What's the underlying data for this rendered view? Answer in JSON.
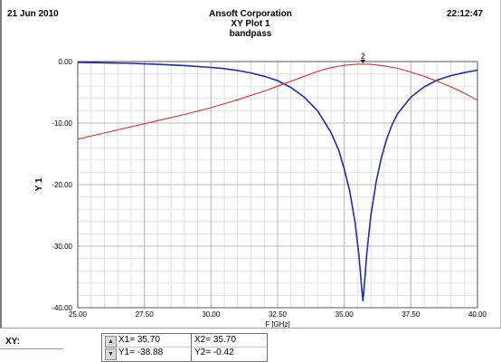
{
  "header": {
    "date": "21 Jun 2010",
    "company": "Ansoft Corporation",
    "plot_title": "XY Plot 1",
    "design_name": "bandpass",
    "time": "22:12:47"
  },
  "status": {
    "xy_label": "XY:",
    "marker_up_icon": "arrow-up-icon",
    "marker_down_icon": "arrow-down-icon",
    "x1": "X1= 35.70",
    "y1": "Y1= -38.88",
    "x2": "X2= 35.70",
    "y2": "Y2= -0.42"
  },
  "chart_data": {
    "type": "line",
    "xlabel": "F [GHz]",
    "ylabel": "Y 1",
    "xlim": [
      25.0,
      40.0
    ],
    "ylim": [
      -40.0,
      0.0
    ],
    "x_ticks": [
      "25.00",
      "27.50",
      "30.00",
      "32.50",
      "35.00",
      "37.50",
      "40.00"
    ],
    "y_ticks": [
      "0.00",
      "-10.00",
      "-20.00",
      "-30.00",
      "-40.00"
    ],
    "grid": true,
    "marker": {
      "label": "2",
      "x": 35.7,
      "y": -0.42
    },
    "series": [
      {
        "color": "#1f2bb5",
        "points": [
          [
            25.0,
            -0.15
          ],
          [
            26.0,
            -0.2
          ],
          [
            27.0,
            -0.3
          ],
          [
            28.0,
            -0.45
          ],
          [
            29.0,
            -0.65
          ],
          [
            30.0,
            -0.95
          ],
          [
            30.5,
            -1.15
          ],
          [
            31.0,
            -1.45
          ],
          [
            31.5,
            -1.85
          ],
          [
            32.0,
            -2.4
          ],
          [
            32.5,
            -3.1
          ],
          [
            33.0,
            -4.2
          ],
          [
            33.5,
            -5.8
          ],
          [
            34.0,
            -8.0
          ],
          [
            34.5,
            -11.5
          ],
          [
            34.8,
            -14.5
          ],
          [
            35.0,
            -17.5
          ],
          [
            35.2,
            -21.0
          ],
          [
            35.4,
            -26.0
          ],
          [
            35.55,
            -31.5
          ],
          [
            35.65,
            -36.5
          ],
          [
            35.7,
            -38.88
          ],
          [
            35.75,
            -36.5
          ],
          [
            35.85,
            -31.0
          ],
          [
            36.0,
            -25.0
          ],
          [
            36.2,
            -19.5
          ],
          [
            36.4,
            -15.5
          ],
          [
            36.6,
            -12.5
          ],
          [
            36.8,
            -10.2
          ],
          [
            37.0,
            -8.5
          ],
          [
            37.5,
            -5.8
          ],
          [
            38.0,
            -4.1
          ],
          [
            38.5,
            -3.0
          ],
          [
            39.0,
            -2.3
          ],
          [
            39.5,
            -1.8
          ],
          [
            40.0,
            -1.4
          ]
        ]
      },
      {
        "color": "#d83030",
        "points": [
          [
            25.0,
            -12.6
          ],
          [
            26.0,
            -11.6
          ],
          [
            27.0,
            -10.6
          ],
          [
            28.0,
            -9.6
          ],
          [
            29.0,
            -8.6
          ],
          [
            30.0,
            -7.5
          ],
          [
            31.0,
            -6.2
          ],
          [
            32.0,
            -4.8
          ],
          [
            32.5,
            -4.0
          ],
          [
            33.0,
            -3.2
          ],
          [
            33.5,
            -2.4
          ],
          [
            34.0,
            -1.6
          ],
          [
            34.5,
            -1.0
          ],
          [
            35.0,
            -0.6
          ],
          [
            35.5,
            -0.43
          ],
          [
            35.7,
            -0.42
          ],
          [
            36.0,
            -0.45
          ],
          [
            36.5,
            -0.7
          ],
          [
            37.0,
            -1.1
          ],
          [
            37.5,
            -1.7
          ],
          [
            38.0,
            -2.4
          ],
          [
            38.5,
            -3.2
          ],
          [
            39.0,
            -4.1
          ],
          [
            39.5,
            -5.1
          ],
          [
            40.0,
            -6.3
          ]
        ]
      }
    ]
  }
}
